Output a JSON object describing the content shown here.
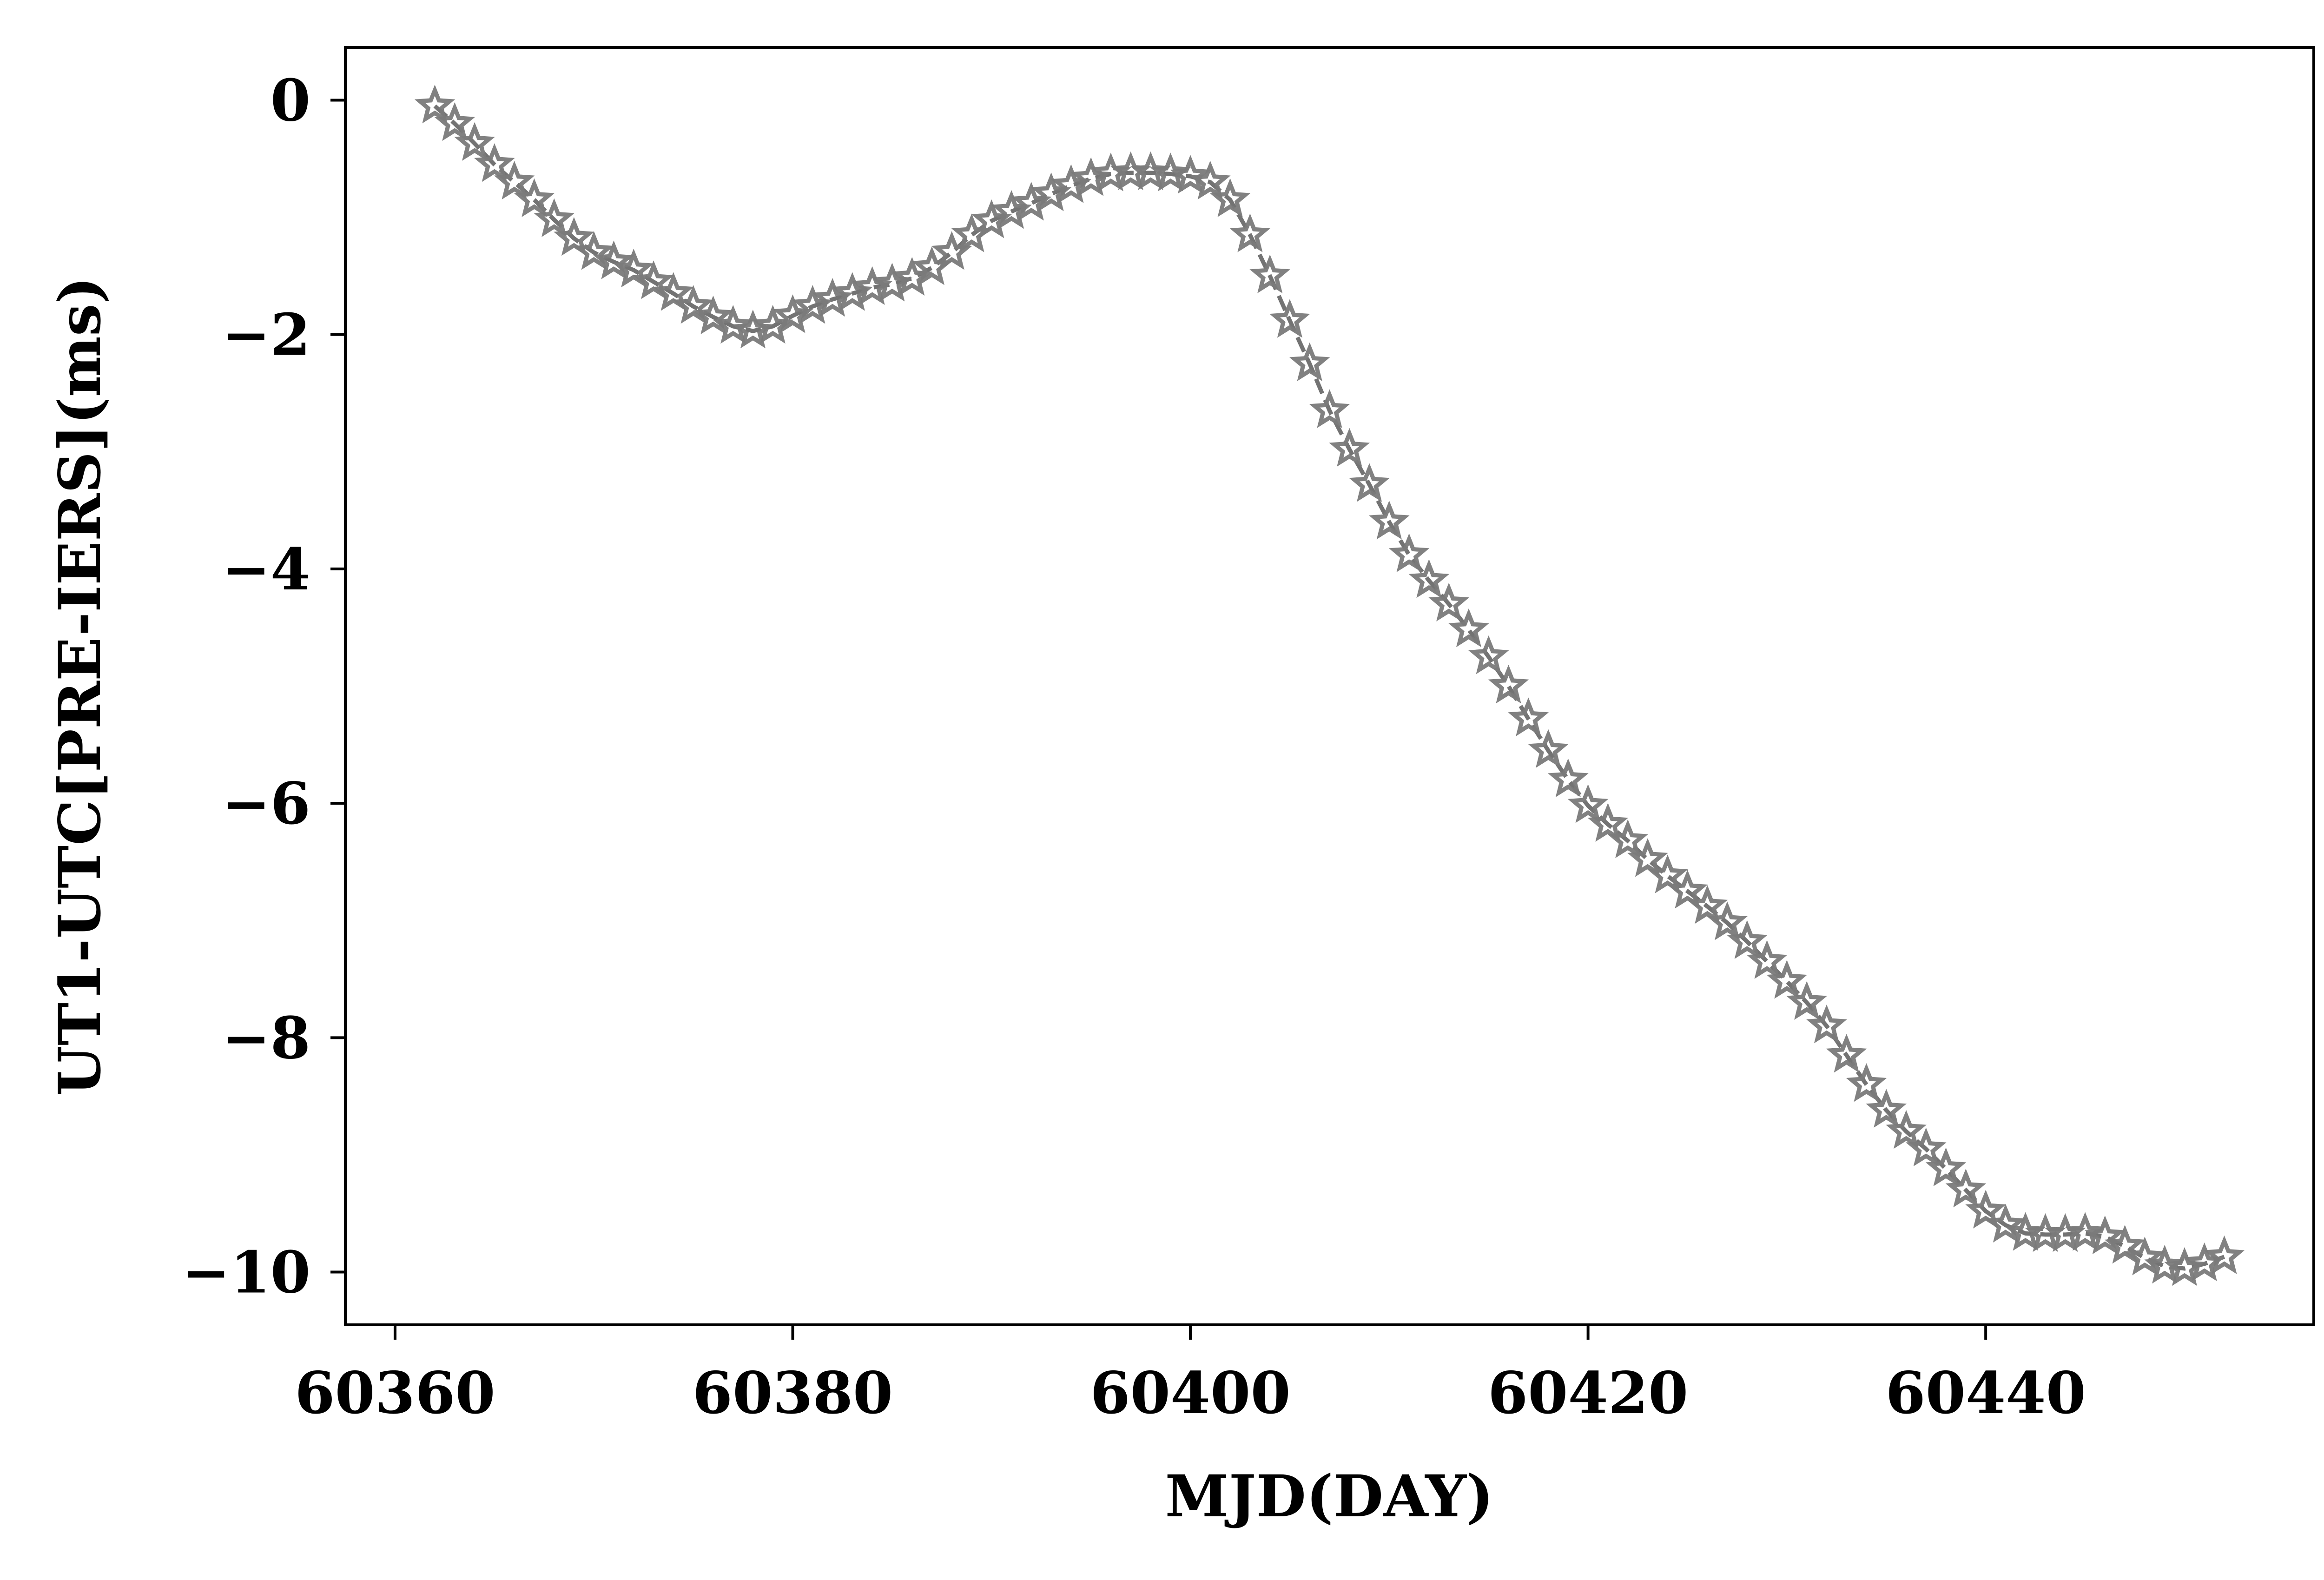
{
  "chart_data": {
    "type": "line",
    "title": "",
    "xlabel": "MJD(DAY)",
    "ylabel": "UT1-UTC[PRE-IERS](ms)",
    "xlim": [
      60357.5,
      60456.5
    ],
    "ylim": [
      -10.45,
      0.45
    ],
    "xticks": [
      60360,
      60380,
      60400,
      60420,
      60440
    ],
    "yticks": [
      0,
      -2,
      -4,
      -6,
      -8,
      -10
    ],
    "xtick_labels": [
      "60360",
      "60380",
      "60400",
      "60420",
      "60440"
    ],
    "ytick_labels": [
      "0",
      "−2",
      "−4",
      "−6",
      "−8",
      "−10"
    ],
    "grid": false,
    "legend": "none",
    "series": [
      {
        "marker": "star",
        "line_style": "dashed",
        "color": "#7a7a7a",
        "x": [
          60362,
          60363,
          60364,
          60365,
          60366,
          60367,
          60368,
          60369,
          60370,
          60371,
          60372,
          60373,
          60374,
          60375,
          60376,
          60377,
          60378,
          60379,
          60380,
          60381,
          60382,
          60383,
          60384,
          60385,
          60386,
          60387,
          60388,
          60389,
          60390,
          60391,
          60392,
          60393,
          60394,
          60395,
          60396,
          60397,
          60398,
          60399,
          60400,
          60401,
          60402,
          60403,
          60404,
          60405,
          60406,
          60407,
          60408,
          60409,
          60410,
          60411,
          60412,
          60413,
          60414,
          60415,
          60416,
          60417,
          60418,
          60419,
          60420,
          60421,
          60422,
          60423,
          60424,
          60425,
          60426,
          60427,
          60428,
          60429,
          60430,
          60431,
          60432,
          60433,
          60434,
          60435,
          60436,
          60437,
          60438,
          60439,
          60440,
          60441,
          60442,
          60443,
          60444,
          60445,
          60446,
          60447,
          60448,
          60449,
          60450,
          60451,
          60452
        ],
        "y": [
          -0.05,
          -0.2,
          -0.37,
          -0.55,
          -0.7,
          -0.85,
          -1.02,
          -1.18,
          -1.3,
          -1.38,
          -1.45,
          -1.55,
          -1.65,
          -1.76,
          -1.85,
          -1.93,
          -1.97,
          -1.93,
          -1.84,
          -1.76,
          -1.7,
          -1.65,
          -1.6,
          -1.57,
          -1.52,
          -1.43,
          -1.3,
          -1.15,
          -1.03,
          -0.95,
          -0.88,
          -0.8,
          -0.73,
          -0.67,
          -0.63,
          -0.62,
          -0.62,
          -0.63,
          -0.65,
          -0.7,
          -0.85,
          -1.15,
          -1.5,
          -1.88,
          -2.25,
          -2.65,
          -2.98,
          -3.28,
          -3.6,
          -3.88,
          -4.1,
          -4.3,
          -4.52,
          -4.75,
          -5.0,
          -5.28,
          -5.55,
          -5.8,
          -6.02,
          -6.18,
          -6.32,
          -6.48,
          -6.62,
          -6.75,
          -6.88,
          -7.02,
          -7.18,
          -7.35,
          -7.52,
          -7.7,
          -7.9,
          -8.15,
          -8.4,
          -8.62,
          -8.8,
          -8.95,
          -9.12,
          -9.3,
          -9.48,
          -9.6,
          -9.67,
          -9.68,
          -9.68,
          -9.67,
          -9.7,
          -9.78,
          -9.88,
          -9.95,
          -9.97,
          -9.93,
          -9.87
        ]
      }
    ]
  }
}
